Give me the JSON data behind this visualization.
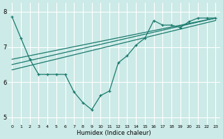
{
  "bg_color": "#cceae7",
  "line_color": "#1a7a6e",
  "grid_color": "#ffffff",
  "xlabel": "Humidex (Indice chaleur)",
  "xlim": [
    -0.5,
    23.5
  ],
  "ylim": [
    4.8,
    8.25
  ],
  "yticks": [
    5,
    6,
    7,
    8
  ],
  "xticks": [
    0,
    1,
    2,
    3,
    4,
    5,
    6,
    7,
    8,
    9,
    10,
    11,
    12,
    13,
    14,
    15,
    16,
    17,
    18,
    19,
    20,
    21,
    22,
    23
  ],
  "series": [
    {
      "x": [
        0,
        1,
        2,
        3,
        4,
        5,
        6,
        7,
        8,
        9,
        10,
        11,
        12,
        13,
        14,
        15,
        16,
        17,
        18,
        19,
        20,
        21,
        22,
        23
      ],
      "y": [
        7.85,
        7.25,
        6.65,
        6.22,
        6.22,
        6.22,
        6.22,
        5.72,
        5.42,
        5.22,
        5.62,
        5.75,
        6.55,
        6.75,
        7.05,
        7.25,
        7.75,
        7.62,
        7.62,
        7.55,
        7.72,
        7.82,
        7.82,
        7.82
      ]
    },
    {
      "x": [
        0,
        23
      ],
      "y": [
        6.65,
        7.82
      ]
    },
    {
      "x": [
        0,
        23
      ],
      "y": [
        6.5,
        7.82
      ]
    },
    {
      "x": [
        0,
        23
      ],
      "y": [
        6.35,
        7.75
      ]
    }
  ]
}
